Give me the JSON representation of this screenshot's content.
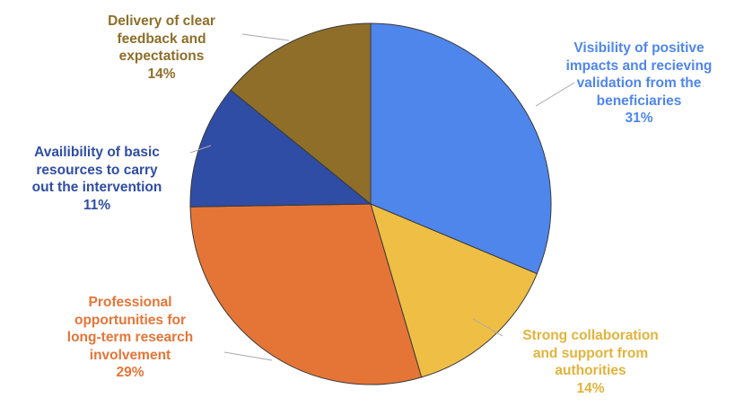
{
  "chart_data": {
    "type": "pie",
    "title": "",
    "slices": [
      {
        "label_lines": [
          "Visibility of positive",
          "impacts and recieving",
          "validation from the",
          "beneficiaries"
        ],
        "value_label": "31%",
        "value": 31,
        "color": "#4f86ec"
      },
      {
        "label_lines": [
          "Strong collaboration",
          "and support from",
          "authorities"
        ],
        "value_label": "14%",
        "value": 14,
        "color": "#efbf45"
      },
      {
        "label_lines": [
          "Professional",
          "opportunities for",
          "long-term research",
          "involvement"
        ],
        "value_label": "29%",
        "value": 29,
        "color": "#e57537"
      },
      {
        "label_lines": [
          "Availibility of basic",
          "resources to carry",
          "out the intervention"
        ],
        "value_label": "11%",
        "value": 11,
        "color": "#2f4da5"
      },
      {
        "label_lines": [
          "Delivery of clear",
          "feedback and",
          "expectations"
        ],
        "value_label": "14%",
        "value": 14,
        "color": "#8e6e29"
      }
    ]
  }
}
